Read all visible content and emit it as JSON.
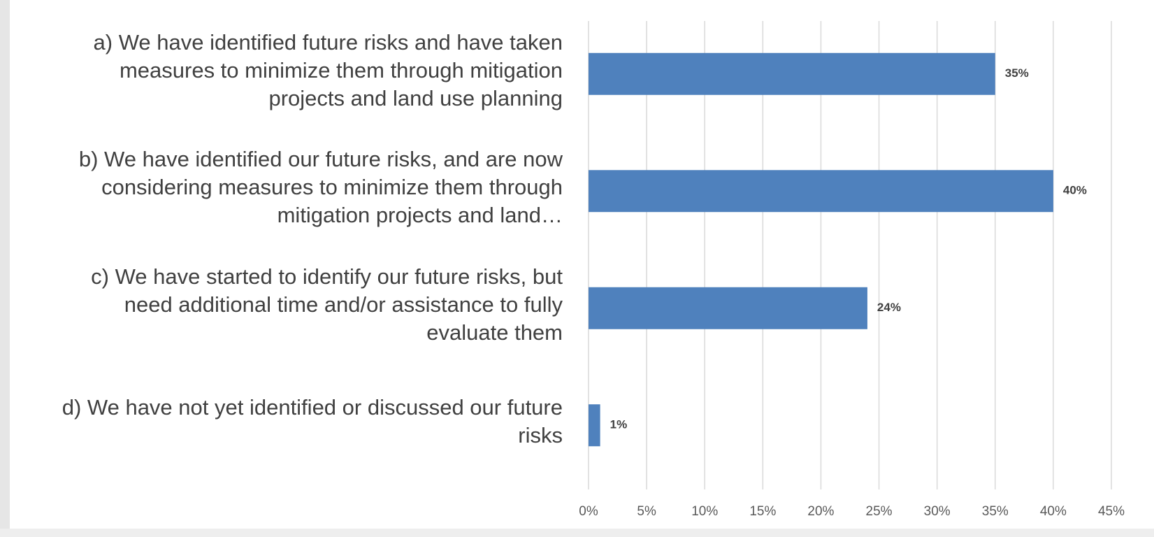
{
  "chart_data": {
    "type": "barh",
    "categories": [
      "a) We have identified future risks and have taken measures to minimize them through mitigation projects and land use planning",
      "b) We have identified our future risks, and are now considering measures to minimize them through mitigation projects and land…",
      "c) We have started to identify our future risks, but need additional time and/or assistance to fully evaluate them",
      "d) We have not yet identified or discussed our future risks"
    ],
    "values": [
      35,
      40,
      24,
      1
    ],
    "value_labels": [
      "35%",
      "40%",
      "24%",
      "1%"
    ],
    "color": "#4f81bd",
    "xlim": [
      0,
      45
    ],
    "xticks": [
      {
        "value": 0,
        "label": "0%"
      },
      {
        "value": 5,
        "label": "5%"
      },
      {
        "value": 10,
        "label": "10%"
      },
      {
        "value": 15,
        "label": "15%"
      },
      {
        "value": 20,
        "label": "20%"
      },
      {
        "value": 25,
        "label": "25%"
      },
      {
        "value": 30,
        "label": "30%"
      },
      {
        "value": 35,
        "label": "35%"
      },
      {
        "value": 40,
        "label": "40%"
      },
      {
        "value": 45,
        "label": "45%"
      }
    ],
    "grid": true
  }
}
